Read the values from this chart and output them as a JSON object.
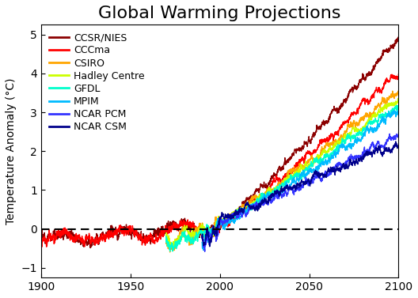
{
  "title": "Global Warming Projections",
  "ylabel": "Temperature Anomaly (°C)",
  "xlim": [
    1900,
    2100
  ],
  "ylim": [
    -1.25,
    5.25
  ],
  "yticks": [
    -1,
    0,
    1,
    2,
    3,
    4,
    5
  ],
  "xticks": [
    1900,
    1950,
    2000,
    2050,
    2100
  ],
  "dashed_line_y": 0.0,
  "models": [
    {
      "name": "CCSR/NIES",
      "color": "#8B0000",
      "hist_start": 1900,
      "final_val": 4.9,
      "lw": 1.0
    },
    {
      "name": "CCCma",
      "color": "#FF0000",
      "hist_start": 1900,
      "final_val": 4.05,
      "lw": 1.0
    },
    {
      "name": "CSIRO",
      "color": "#FFA500",
      "hist_start": 1970,
      "final_val": 3.55,
      "lw": 1.0
    },
    {
      "name": "Hadley Centre",
      "color": "#CCFF00",
      "hist_start": 1970,
      "final_val": 3.35,
      "lw": 1.0
    },
    {
      "name": "GFDL",
      "color": "#00FFCC",
      "hist_start": 1970,
      "final_val": 3.2,
      "lw": 1.0
    },
    {
      "name": "MPIM",
      "color": "#00BBFF",
      "hist_start": 1990,
      "final_val": 3.05,
      "lw": 1.0
    },
    {
      "name": "NCAR PCM",
      "color": "#3333FF",
      "hist_start": 1990,
      "final_val": 2.4,
      "lw": 1.0
    },
    {
      "name": "NCAR CSM",
      "color": "#00008B",
      "hist_start": 1990,
      "final_val": 2.25,
      "lw": 1.0
    }
  ],
  "title_fontsize": 16,
  "label_fontsize": 10,
  "tick_fontsize": 10,
  "legend_fontsize": 9,
  "background_color": "#ffffff"
}
